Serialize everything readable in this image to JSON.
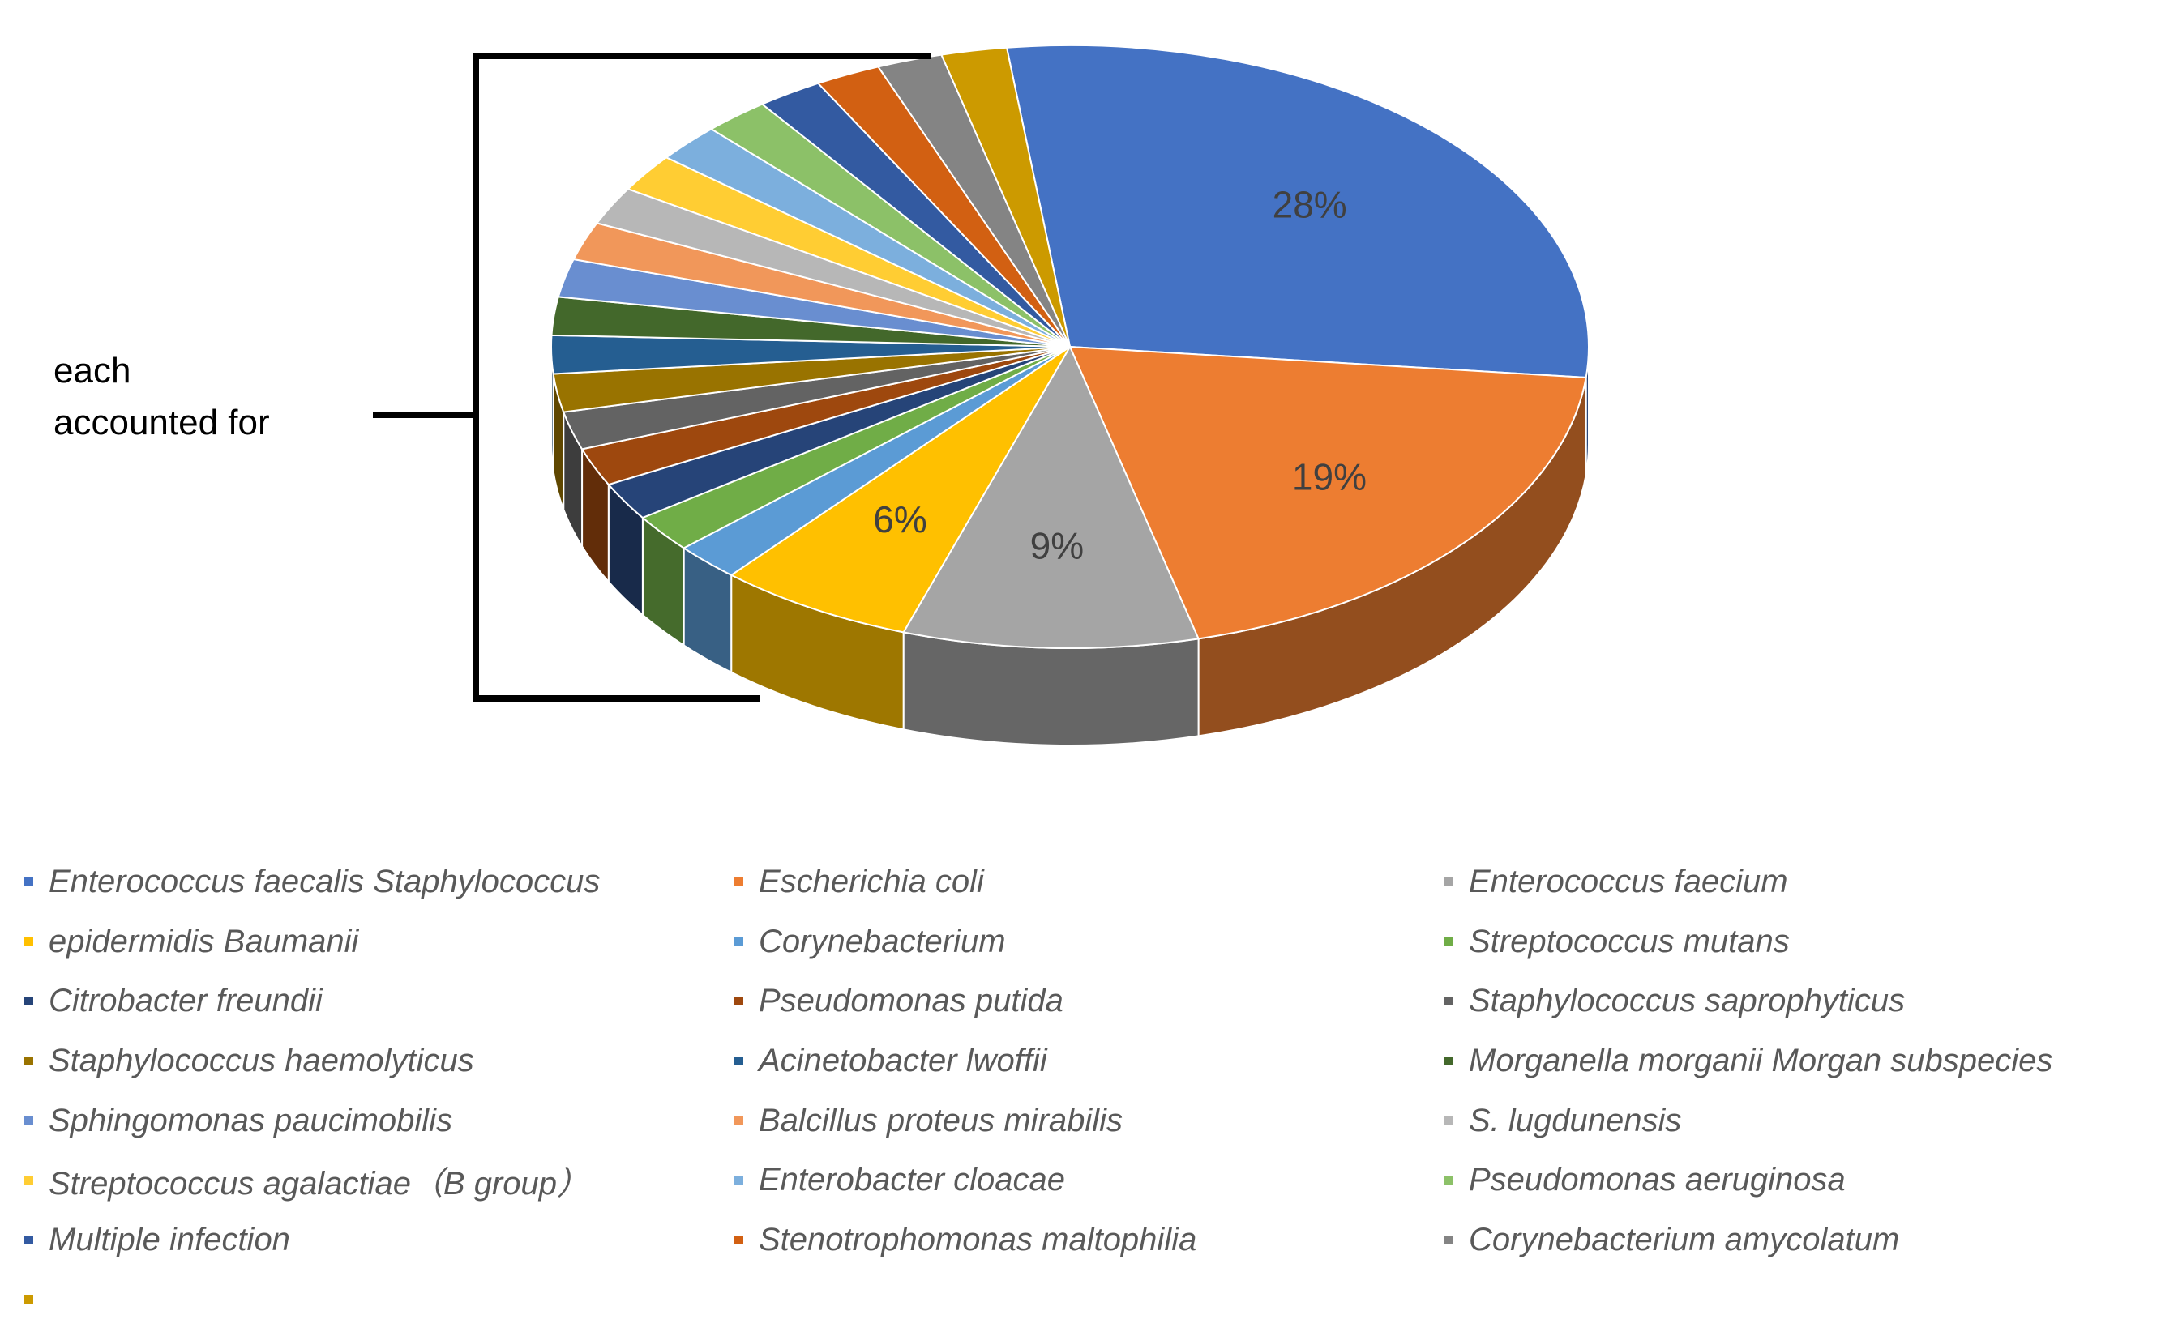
{
  "chart_data": {
    "type": "pie",
    "style": "3d",
    "annotation": [
      "each",
      "accounted for"
    ],
    "slices": [
      {
        "label": "Enterococcus faecalis Staphylococcus",
        "value": 28,
        "data_label": "28%",
        "color": "#4472C4"
      },
      {
        "label": "Escherichia coli",
        "value": 19,
        "data_label": "19%",
        "color": "#ED7D31"
      },
      {
        "label": "Enterococcus faecium",
        "value": 9,
        "data_label": "9%",
        "color": "#A5A5A5"
      },
      {
        "label": "epidermidis Baumanii",
        "value": 6,
        "data_label": "6%",
        "color": "#FFC000"
      },
      {
        "label": "Corynebacterium",
        "value": 2,
        "data_label": "",
        "color": "#5B9BD5"
      },
      {
        "label": "Streptococcus mutans",
        "value": 2,
        "data_label": "",
        "color": "#70AD47"
      },
      {
        "label": "Citrobacter freundii",
        "value": 2,
        "data_label": "",
        "color": "#264478"
      },
      {
        "label": "Pseudomonas putida",
        "value": 2,
        "data_label": "",
        "color": "#9E480E"
      },
      {
        "label": "Staphylococcus saprophyticus",
        "value": 2,
        "data_label": "",
        "color": "#636363"
      },
      {
        "label": "Staphylococcus haemolyticus",
        "value": 2,
        "data_label": "",
        "color": "#997300"
      },
      {
        "label": "Acinetobacter lwoffii",
        "value": 2,
        "data_label": "",
        "color": "#255E91"
      },
      {
        "label": "Morganella morganii Morgan subspecies",
        "value": 2,
        "data_label": "",
        "color": "#43682B"
      },
      {
        "label": "Sphingomonas paucimobilis",
        "value": 2,
        "data_label": "",
        "color": "#698ED0"
      },
      {
        "label": "Balcillus proteus mirabilis",
        "value": 2,
        "data_label": "",
        "color": "#F1975A"
      },
      {
        "label": "S. lugdunensis",
        "value": 2,
        "data_label": "",
        "color": "#B7B7B7"
      },
      {
        "label": "Streptococcus agalactiae（B group）",
        "value": 2,
        "data_label": "",
        "color": "#FFCD33"
      },
      {
        "label": "Enterobacter cloacae",
        "value": 2,
        "data_label": "",
        "color": "#7CAFDD"
      },
      {
        "label": "Pseudomonas aeruginosa",
        "value": 2,
        "data_label": "",
        "color": "#8CC168"
      },
      {
        "label": "Multiple infection",
        "value": 2,
        "data_label": "",
        "color": "#335AA1"
      },
      {
        "label": "Stenotrophomonas maltophilia",
        "value": 2,
        "data_label": "",
        "color": "#D26012"
      },
      {
        "label": "Corynebacterium amycolatum",
        "value": 2,
        "data_label": "",
        "color": "#848484"
      },
      {
        "label": "",
        "value": 2,
        "data_label": "",
        "color": "#CC9A00"
      }
    ]
  }
}
